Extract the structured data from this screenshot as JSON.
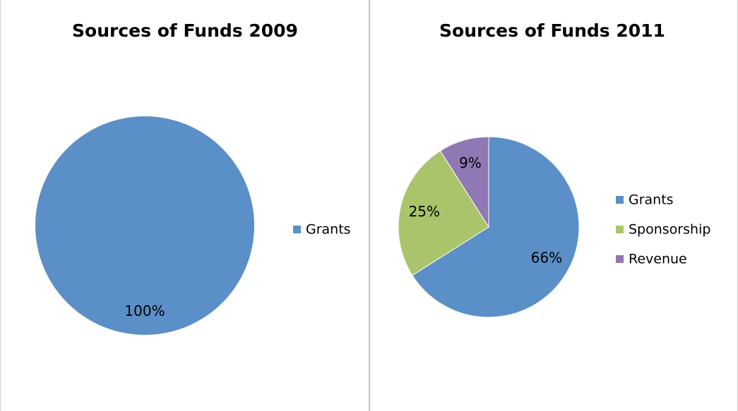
{
  "chart_data": [
    {
      "type": "pie",
      "title": "Sources of Funds 2009",
      "categories": [
        "Grants"
      ],
      "values": [
        100
      ],
      "value_labels": [
        "100%"
      ],
      "colors": [
        "#5b8fc7"
      ],
      "legend": "right"
    },
    {
      "type": "pie",
      "title": "Sources of Funds 2011",
      "categories": [
        "Grants",
        "Sponsorship",
        "Revenue"
      ],
      "values": [
        66,
        25,
        9
      ],
      "value_labels": [
        "66%",
        "25%",
        "9%"
      ],
      "colors": [
        "#5b8fc7",
        "#a9c46a",
        "#8f78b3"
      ],
      "legend": "right"
    }
  ]
}
